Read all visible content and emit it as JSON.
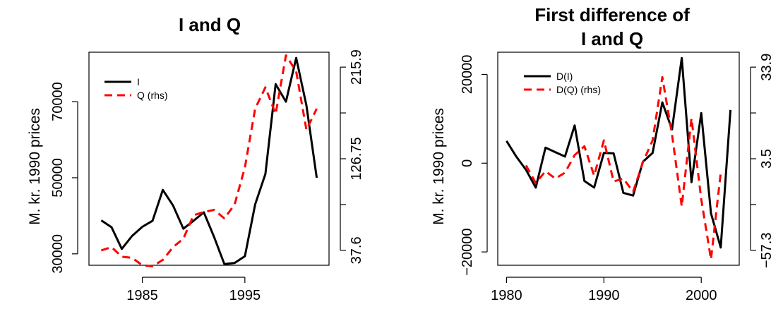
{
  "chart_data": [
    {
      "type": "line",
      "title": "I and Q",
      "ylabel": "M. kr. 1990 prices",
      "x_ticks": [
        1985,
        1995
      ],
      "y_ticks": [
        30000,
        50000,
        70000
      ],
      "y_ticks_right": [
        "37.6",
        "126.75",
        "215.9"
      ],
      "xlim": [
        1979.8,
        2003.2
      ],
      "ylim": [
        27000,
        83000
      ],
      "ylim_right": [
        28,
        228
      ],
      "legend_position": "top-left",
      "series": [
        {
          "name": "I",
          "axis": "left",
          "color": "#000000",
          "style": "solid",
          "x": [
            1981,
            1982,
            1983,
            1984,
            1985,
            1986,
            1987,
            1988,
            1989,
            1990,
            1991,
            1992,
            1993,
            1994,
            1995,
            1996,
            1997,
            1998,
            1999,
            2000,
            2001,
            2002
          ],
          "values": [
            38800,
            37000,
            31300,
            34700,
            37100,
            38700,
            46800,
            42700,
            36600,
            38700,
            40900,
            34400,
            27300,
            27600,
            29400,
            43000,
            51000,
            74600,
            70000,
            81500,
            69000,
            50000
          ]
        },
        {
          "name": "Q (rhs)",
          "axis": "right",
          "color": "#ff0000",
          "style": "dashed",
          "x": [
            1981,
            1982,
            1983,
            1984,
            1985,
            1986,
            1987,
            1988,
            1989,
            1990,
            1991,
            1992,
            1993,
            1994,
            1995,
            1996,
            1997,
            1998,
            1999,
            2000,
            2001,
            2002
          ],
          "values": [
            42,
            45,
            36,
            35,
            28,
            27,
            33,
            45,
            53,
            75,
            78,
            80,
            72,
            85,
            120,
            175,
            195,
            170,
            225,
            210,
            155,
            175
          ]
        }
      ]
    },
    {
      "type": "line",
      "title": "First difference of\nI and Q",
      "ylabel": "M. kr. 1990 prices",
      "x_ticks": [
        1980,
        1990,
        2000
      ],
      "y_ticks": [
        -20000,
        0,
        20000
      ],
      "y_ticks_right": [
        "-57.3",
        "3.5",
        "33.9"
      ],
      "xlim": [
        1979.1,
        2003.9
      ],
      "ylim": [
        -23000,
        25000
      ],
      "ylim_right": [
        -65,
        80
      ],
      "legend_position": "top-left",
      "series": [
        {
          "name": "D(I)",
          "axis": "left",
          "color": "#000000",
          "style": "solid",
          "x": [
            1980,
            1981,
            1982,
            1983,
            1984,
            1985,
            1986,
            1987,
            1988,
            1989,
            1990,
            1991,
            1992,
            1993,
            1994,
            1995,
            1996,
            1997,
            1998,
            1999,
            2000,
            2001,
            2002,
            2003
          ],
          "values": [
            5000,
            1500,
            -1500,
            -5500,
            3500,
            2500,
            1500,
            8500,
            -4000,
            -5500,
            2300,
            2200,
            -6700,
            -7300,
            300,
            2300,
            13700,
            7600,
            23700,
            -4300,
            11300,
            -11300,
            -19000,
            12000
          ]
        },
        {
          "name": "D(Q) (rhs)",
          "axis": "right",
          "color": "#ff0000",
          "style": "dashed",
          "x": [
            1982,
            1983,
            1984,
            1985,
            1986,
            1987,
            1988,
            1989,
            1990,
            1991,
            1992,
            1993,
            1994,
            1995,
            1996,
            1997,
            1998,
            1999,
            2000,
            2001,
            2002
          ],
          "values": [
            3,
            -9,
            -1,
            -6,
            -2,
            10,
            16,
            -4,
            20,
            -8,
            -6,
            -15,
            5,
            20,
            63,
            24,
            -25,
            35,
            -20,
            -61,
            -2
          ]
        }
      ]
    }
  ]
}
